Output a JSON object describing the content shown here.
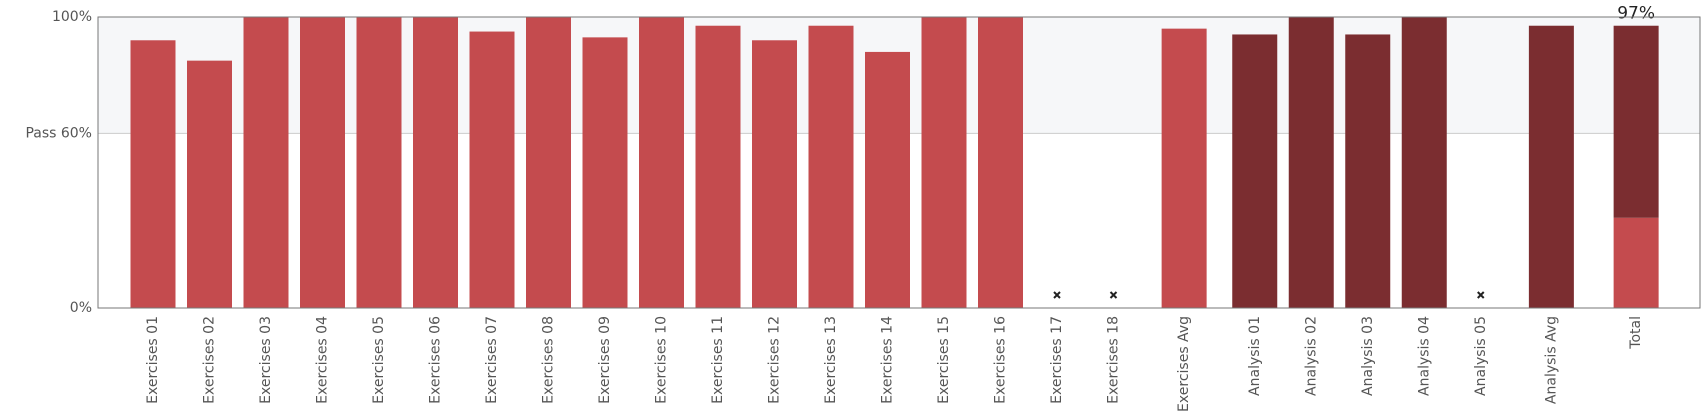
{
  "chart_data": {
    "type": "stacked-bar",
    "categories": [
      "Exercises 01",
      "Exercises 02",
      "Exercises 03",
      "Exercises 04",
      "Exercises 05",
      "Exercises 06",
      "Exercises 07",
      "Exercises 08",
      "Exercises 09",
      "Exercises 10",
      "Exercises 11",
      "Exercises 12",
      "Exercises 13",
      "Exercises 14",
      "Exercises 15",
      "Exercises 16",
      "Exercises 17",
      "Exercises 18",
      "Exercises Avg",
      "Analysis 01",
      "Analysis 02",
      "Analysis 03",
      "Analysis 04",
      "Analysis 05",
      "Analysis Avg",
      "Total"
    ],
    "series": [
      {
        "color": "#c44b4e",
        "values": [
          92,
          85,
          100,
          100,
          100,
          100,
          95,
          100,
          93,
          100,
          97,
          92,
          97,
          88,
          100,
          100,
          null,
          null,
          96,
          null,
          null,
          null,
          null,
          null,
          null,
          31
        ]
      },
      {
        "color": "#7b2d30",
        "values": [
          null,
          null,
          null,
          null,
          null,
          null,
          null,
          null,
          null,
          null,
          null,
          null,
          null,
          null,
          null,
          null,
          null,
          null,
          null,
          94,
          100,
          94,
          100,
          null,
          97,
          66
        ]
      }
    ],
    "annotation": "97%",
    "band": {
      "from": 60,
      "to": 100,
      "color": "#f6f7f9"
    },
    "ylim": [
      0,
      100
    ],
    "yticks": [
      {
        "value": 0,
        "label": "0%"
      },
      {
        "value": 60,
        "label": "Pass 60%"
      },
      {
        "value": 100,
        "label": "100%"
      }
    ],
    "grid": true
  }
}
